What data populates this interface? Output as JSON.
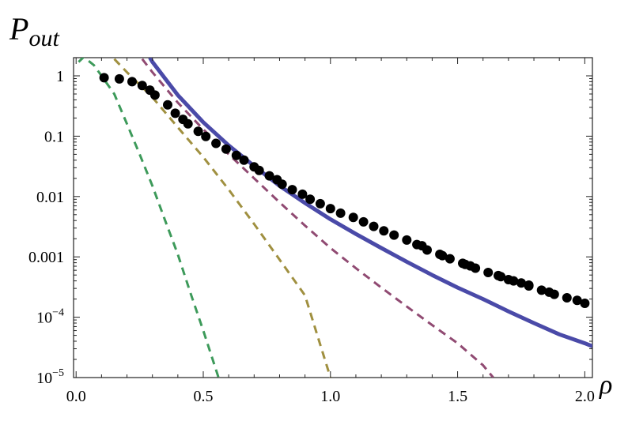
{
  "chart_data": {
    "type": "scatter",
    "title": "",
    "ylabel_main": "P",
    "ylabel_sub": "out",
    "xlabel": "ρ",
    "xlim": [
      -0.01,
      2.03
    ],
    "ylim": [
      1e-05,
      2
    ],
    "yscale": "log",
    "x_ticks": [
      {
        "v": 0.0,
        "label": "0.0"
      },
      {
        "v": 0.5,
        "label": "0.5"
      },
      {
        "v": 1.0,
        "label": "1.0"
      },
      {
        "v": 1.5,
        "label": "1.5"
      },
      {
        "v": 2.0,
        "label": "2.0"
      }
    ],
    "y_ticks": [
      {
        "v": 1,
        "label": "1"
      },
      {
        "v": 0.1,
        "label": "0.1"
      },
      {
        "v": 0.01,
        "label": "0.01"
      },
      {
        "v": 0.001,
        "label": "0.001"
      },
      {
        "v": 0.0001,
        "label": "10",
        "exp": "−4"
      },
      {
        "v": 1e-05,
        "label": "10",
        "exp": "−5"
      }
    ],
    "series": [
      {
        "style": "dashed",
        "color": "#3d9a5a",
        "points": [
          [
            0.01,
            1.7
          ],
          [
            0.03,
            2.05
          ],
          [
            0.07,
            1.5
          ],
          [
            0.1,
            1.0
          ],
          [
            0.15,
            0.5
          ],
          [
            0.2,
            0.16
          ],
          [
            0.25,
            0.05
          ],
          [
            0.3,
            0.015
          ],
          [
            0.35,
            0.004
          ],
          [
            0.4,
            0.0011
          ],
          [
            0.45,
            0.00025
          ],
          [
            0.5,
            6e-05
          ],
          [
            0.56,
            1e-05
          ]
        ]
      },
      {
        "style": "dashed",
        "color": "#a09040",
        "points": [
          [
            0.15,
            1.9
          ],
          [
            0.2,
            1.15
          ],
          [
            0.3,
            0.44
          ],
          [
            0.4,
            0.14
          ],
          [
            0.5,
            0.045
          ],
          [
            0.6,
            0.013
          ],
          [
            0.7,
            0.0035
          ],
          [
            0.8,
            0.0009
          ],
          [
            0.9,
            0.00023
          ],
          [
            1.0,
            1e-05
          ]
        ]
      },
      {
        "style": "dashed",
        "color": "#904a72",
        "points": [
          [
            0.26,
            1.9
          ],
          [
            0.3,
            1.15
          ],
          [
            0.4,
            0.36
          ],
          [
            0.5,
            0.13
          ],
          [
            0.6,
            0.05
          ],
          [
            0.7,
            0.02
          ],
          [
            0.8,
            0.008
          ],
          [
            0.9,
            0.0033
          ],
          [
            1.0,
            0.0014
          ],
          [
            1.1,
            0.00065
          ],
          [
            1.2,
            0.00031
          ],
          [
            1.3,
            0.00015
          ],
          [
            1.4,
            7.4e-05
          ],
          [
            1.5,
            3.7e-05
          ],
          [
            1.6,
            1.6e-05
          ],
          [
            1.64,
            1e-05
          ]
        ]
      },
      {
        "style": "solid",
        "color": "#4a4aa8",
        "points": [
          [
            0.29,
            2.0
          ],
          [
            0.3,
            1.7
          ],
          [
            0.35,
            0.9
          ],
          [
            0.4,
            0.48
          ],
          [
            0.5,
            0.17
          ],
          [
            0.6,
            0.07
          ],
          [
            0.7,
            0.032
          ],
          [
            0.8,
            0.015
          ],
          [
            0.9,
            0.0078
          ],
          [
            1.0,
            0.0042
          ],
          [
            1.1,
            0.0024
          ],
          [
            1.2,
            0.0014
          ],
          [
            1.3,
            0.00083
          ],
          [
            1.4,
            0.0005
          ],
          [
            1.5,
            0.00031
          ],
          [
            1.6,
            0.0002
          ],
          [
            1.7,
            0.000125
          ],
          [
            1.8,
            8e-05
          ],
          [
            1.9,
            5.2e-05
          ],
          [
            2.0,
            3.7e-05
          ],
          [
            2.03,
            3.3e-05
          ]
        ]
      },
      {
        "style": "dots",
        "color": "#000000",
        "points": [
          [
            0.11,
            0.93
          ],
          [
            0.17,
            0.89
          ],
          [
            0.22,
            0.8
          ],
          [
            0.26,
            0.69
          ],
          [
            0.29,
            0.58
          ],
          [
            0.31,
            0.48
          ],
          [
            0.36,
            0.33
          ],
          [
            0.39,
            0.24
          ],
          [
            0.42,
            0.19
          ],
          [
            0.44,
            0.16
          ],
          [
            0.48,
            0.12
          ],
          [
            0.51,
            0.099
          ],
          [
            0.55,
            0.076
          ],
          [
            0.59,
            0.061
          ],
          [
            0.63,
            0.048
          ],
          [
            0.66,
            0.04
          ],
          [
            0.7,
            0.031
          ],
          [
            0.72,
            0.027
          ],
          [
            0.76,
            0.022
          ],
          [
            0.79,
            0.019
          ],
          [
            0.81,
            0.016
          ],
          [
            0.85,
            0.013
          ],
          [
            0.89,
            0.0109
          ],
          [
            0.92,
            0.009
          ],
          [
            0.96,
            0.0076
          ],
          [
            1.0,
            0.0063
          ],
          [
            1.04,
            0.0053
          ],
          [
            1.09,
            0.0045
          ],
          [
            1.13,
            0.0038
          ],
          [
            1.17,
            0.0032
          ],
          [
            1.21,
            0.0027
          ],
          [
            1.25,
            0.0023
          ],
          [
            1.3,
            0.0019
          ],
          [
            1.34,
            0.0016
          ],
          [
            1.38,
            0.0013
          ],
          [
            1.43,
            0.0011
          ],
          [
            1.47,
            0.00093
          ],
          [
            1.52,
            0.00078
          ],
          [
            1.57,
            0.00065
          ],
          [
            1.62,
            0.00055
          ],
          [
            1.67,
            0.00047
          ],
          [
            1.72,
            0.0004
          ],
          [
            1.78,
            0.00033
          ],
          [
            1.83,
            0.00028
          ],
          [
            1.88,
            0.00024
          ],
          [
            1.93,
            0.00021
          ],
          [
            1.97,
            0.00019
          ],
          [
            2.0,
            0.00017
          ],
          [
            1.36,
            0.00153
          ],
          [
            1.44,
            0.00105
          ],
          [
            1.55,
            0.00071
          ],
          [
            1.66,
            0.00049
          ],
          [
            1.75,
            0.00037
          ],
          [
            1.53,
            0.00075
          ],
          [
            1.7,
            0.00042
          ],
          [
            1.78,
            0.00034
          ],
          [
            1.86,
            0.00026
          ]
        ]
      }
    ]
  }
}
